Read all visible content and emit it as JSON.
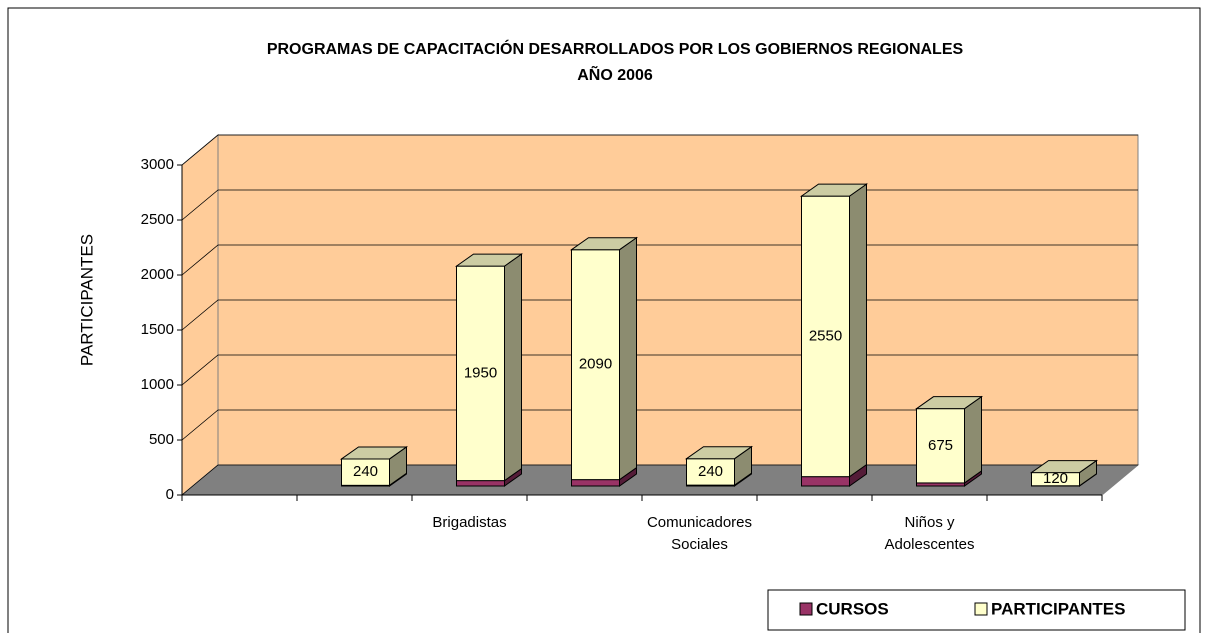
{
  "chart_data": {
    "type": "bar3d_stacked",
    "title": "PROGRAMAS DE CAPACITACIÓN DESARROLLADOS POR LOS GOBIERNOS REGIONALES",
    "subtitle": "AÑO 2006",
    "y_label": "PARTICIPANTES",
    "categories": [
      null,
      null,
      "Brigadistas",
      null,
      "Comunicadores Sociales",
      null,
      "Niños y Adolescentes",
      null
    ],
    "series": [
      {
        "name": "CURSOS",
        "color": "#993366",
        "values": [
          null,
          6,
          49,
          58,
          8,
          85,
          28,
          2
        ]
      },
      {
        "name": "PARTICIPANTES",
        "color": "#FFFFCC",
        "values": [
          null,
          240,
          1950,
          2090,
          240,
          2550,
          675,
          120
        ]
      }
    ],
    "ylim": [
      0,
      3000
    ],
    "yticks": [
      0,
      500,
      1000,
      1500,
      2000,
      2500,
      3000
    ],
    "grid": true,
    "wall_color": "#FFCC99",
    "floor_color": "#808080",
    "legend": "bottom-right"
  }
}
